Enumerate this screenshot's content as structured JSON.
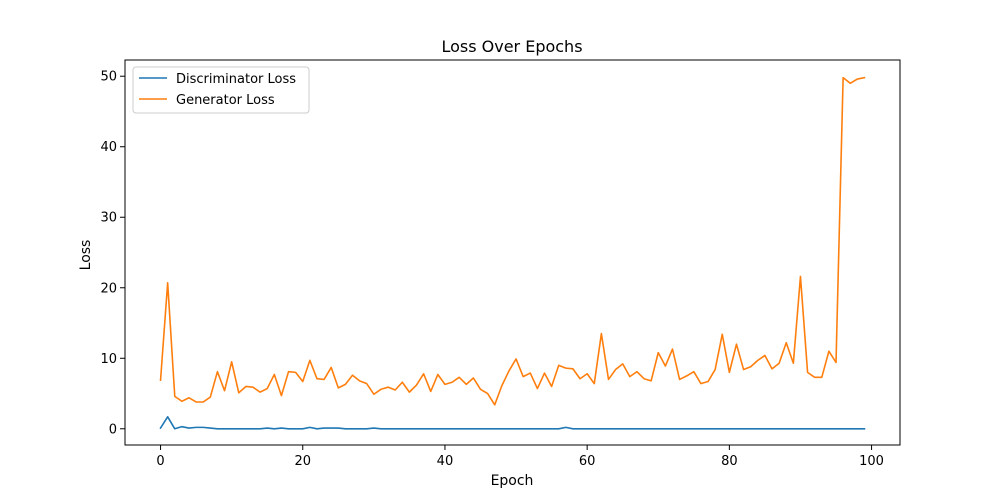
{
  "chart_data": {
    "type": "line",
    "title": "Loss Over Epochs",
    "xlabel": "Epoch",
    "ylabel": "Loss",
    "xlim": [
      -5,
      104
    ],
    "ylim": [
      -2.3,
      52.3
    ],
    "xticks": [
      0,
      20,
      40,
      60,
      80,
      100
    ],
    "yticks": [
      0,
      10,
      20,
      30,
      40,
      50
    ],
    "grid": false,
    "legend_position": "top-left",
    "series": [
      {
        "name": "Discriminator Loss",
        "color": "#1f77b4",
        "values": [
          0.1,
          1.7,
          0.0,
          0.3,
          0.1,
          0.2,
          0.2,
          0.1,
          0.0,
          0.0,
          0.0,
          0.0,
          0.0,
          0.0,
          0.0,
          0.1,
          0.0,
          0.1,
          0.0,
          0.0,
          0.0,
          0.2,
          0.0,
          0.1,
          0.1,
          0.1,
          0.0,
          0.0,
          0.0,
          0.0,
          0.1,
          0.0,
          0.0,
          0.0,
          0.0,
          0.0,
          0.0,
          0.0,
          0.0,
          0.0,
          0.0,
          0.0,
          0.0,
          0.0,
          0.0,
          0.0,
          0.0,
          0.0,
          0.0,
          0.0,
          0.0,
          0.0,
          0.0,
          0.0,
          0.0,
          0.0,
          0.0,
          0.2,
          0.0,
          0.0,
          0.0,
          0.0,
          0.0,
          0.0,
          0.0,
          0.0,
          0.0,
          0.0,
          0.0,
          0.0,
          0.0,
          0.0,
          0.0,
          0.0,
          0.0,
          0.0,
          0.0,
          0.0,
          0.0,
          0.0,
          0.0,
          0.0,
          0.0,
          0.0,
          0.0,
          0.0,
          0.0,
          0.0,
          0.0,
          0.0,
          0.0,
          0.0,
          0.0,
          0.0,
          0.0,
          0.0,
          0.0,
          0.0,
          0.0,
          0.0
        ]
      },
      {
        "name": "Generator Loss",
        "color": "#ff7f0e",
        "values": [
          6.9,
          20.7,
          4.6,
          3.9,
          4.4,
          3.8,
          3.8,
          4.5,
          8.1,
          5.4,
          9.5,
          5.1,
          6.0,
          5.9,
          5.2,
          5.7,
          7.7,
          4.7,
          8.1,
          8.0,
          6.7,
          9.7,
          7.1,
          7.0,
          8.7,
          5.8,
          6.3,
          7.6,
          6.8,
          6.4,
          4.9,
          5.6,
          5.9,
          5.5,
          6.6,
          5.2,
          6.2,
          7.8,
          5.3,
          7.7,
          6.3,
          6.6,
          7.3,
          6.3,
          7.2,
          5.6,
          5.0,
          3.4,
          6.1,
          8.2,
          9.9,
          7.4,
          7.9,
          5.7,
          7.9,
          6.0,
          9.0,
          8.6,
          8.5,
          7.1,
          7.8,
          6.4,
          13.5,
          7.0,
          8.4,
          9.2,
          7.4,
          8.1,
          7.1,
          6.8,
          10.8,
          8.9,
          11.3,
          7.0,
          7.5,
          8.1,
          6.4,
          6.7,
          8.4,
          13.4,
          8.0,
          12.0,
          8.4,
          8.8,
          9.7,
          10.4,
          8.5,
          9.3,
          12.2,
          9.3,
          21.6,
          8.0,
          7.3,
          7.3,
          11.0,
          9.4,
          49.8,
          49.0,
          49.6,
          49.8
        ]
      }
    ]
  }
}
